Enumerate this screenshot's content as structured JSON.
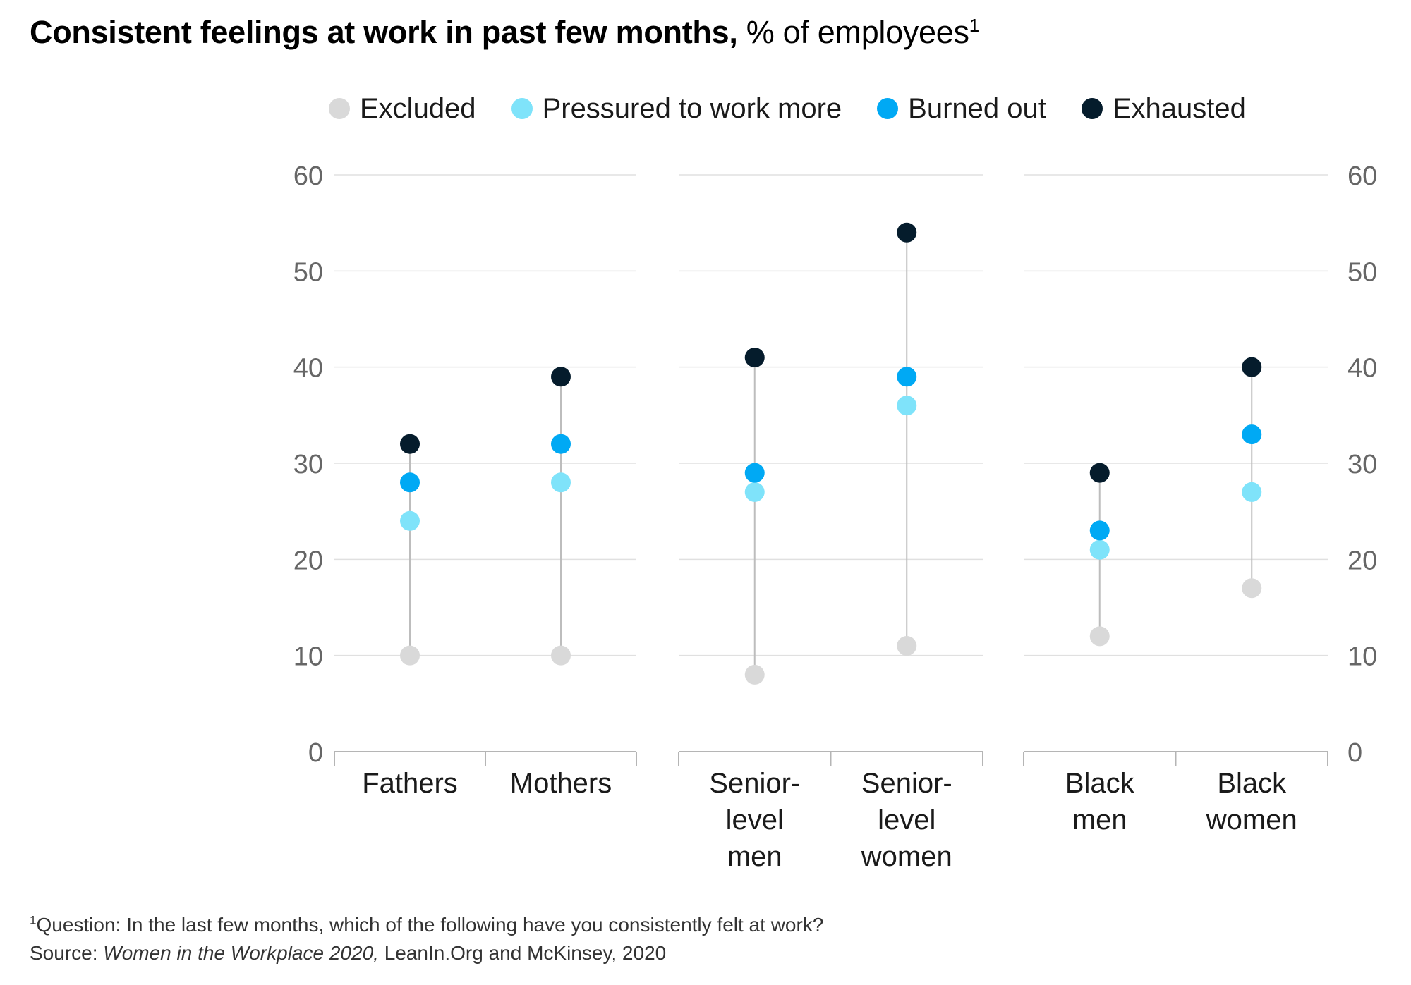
{
  "title": {
    "main": "Consistent feelings at work in past few months,",
    "sub": "% of employees",
    "sup": "1"
  },
  "colors": {
    "Excluded": "#d9d9d9",
    "Pressured to work more": "#7fe3fa",
    "Burned out": "#00a9f4",
    "Exhausted": "#051c2c",
    "gridline": "#e0e0e0",
    "connector": "#bdbdbd",
    "axis_text": "#666666"
  },
  "chart_data": {
    "type": "scatter",
    "ylim": [
      0,
      60
    ],
    "yticks": [
      0,
      10,
      20,
      30,
      40,
      50,
      60
    ],
    "grid": true,
    "legend_position": "top",
    "panels": [
      {
        "categories": [
          [
            "Fathers"
          ],
          [
            "Mothers"
          ]
        ]
      },
      {
        "categories": [
          [
            "Senior-",
            "level",
            "men"
          ],
          [
            "Senior-",
            "level",
            "women"
          ]
        ]
      },
      {
        "categories": [
          [
            "Black",
            "men"
          ],
          [
            "Black",
            "women"
          ]
        ]
      }
    ],
    "series": [
      {
        "name": "Excluded",
        "values": [
          10,
          10,
          8,
          11,
          12,
          17
        ]
      },
      {
        "name": "Pressured to work more",
        "values": [
          24,
          28,
          27,
          36,
          21,
          27
        ]
      },
      {
        "name": "Burned out",
        "values": [
          28,
          32,
          29,
          39,
          23,
          33
        ]
      },
      {
        "name": "Exhausted",
        "values": [
          32,
          39,
          41,
          54,
          29,
          40
        ]
      }
    ]
  },
  "footnote": {
    "sup": "1",
    "question": "Question: In the last few months, which of the following have you consistently felt at work?",
    "source_label": "Source: ",
    "source_italic": "Women in the Workplace 2020,",
    "source_rest": " LeanIn.Org and McKinsey, 2020"
  }
}
